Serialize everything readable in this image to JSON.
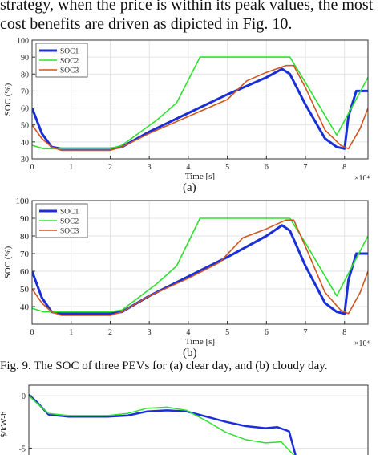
{
  "text": {
    "line1": "strategy, when the price is within its peak values, the most",
    "line2": "cost benefits are driven as dipicted in Fig. 10.",
    "caption_a": "(a)",
    "caption_b": "(b)",
    "fig9_caption": "Fig. 9. The SOC of three PEVs for (a) clear day, and (b) cloudy day."
  },
  "chart_data": [
    {
      "type": "line",
      "panel": "(a)",
      "xlabel": "Time [s]",
      "ylabel": "SOC (%)",
      "x_multiplier": "×10⁴",
      "xlim": [
        0,
        8.6
      ],
      "ylim": [
        30,
        100
      ],
      "xticks": [
        0,
        1,
        2,
        3,
        4,
        5,
        6,
        7,
        8
      ],
      "yticks": [
        30,
        40,
        50,
        60,
        70,
        80,
        90,
        100
      ],
      "grid": true,
      "legend_position": "top-left",
      "series": [
        {
          "name": "SOC1",
          "color": "#1a2fd6",
          "width": 3,
          "x": [
            0,
            0.25,
            0.5,
            0.75,
            1.0,
            1.5,
            2.0,
            2.3,
            3.0,
            4.0,
            5.0,
            6.0,
            6.4,
            6.6,
            7.0,
            7.5,
            7.8,
            8.0,
            8.1,
            8.3,
            8.6
          ],
          "y": [
            60,
            45,
            37,
            36,
            36,
            36,
            36,
            37,
            46,
            57,
            68,
            78,
            83,
            80,
            62,
            42,
            37,
            36,
            55,
            70,
            70
          ]
        },
        {
          "name": "SOC2",
          "color": "#2ee02e",
          "width": 1.6,
          "x": [
            0,
            0.3,
            0.6,
            1.0,
            1.5,
            2.0,
            2.3,
            3.2,
            3.7,
            4.3,
            5.0,
            6.0,
            6.6,
            7.0,
            7.8,
            8.6
          ],
          "y": [
            38,
            36,
            36,
            36,
            36,
            36,
            38,
            53,
            63,
            90,
            90,
            90,
            90,
            75,
            44,
            78
          ]
        },
        {
          "name": "SOC3",
          "color": "#d2541e",
          "width": 1.6,
          "x": [
            0,
            0.25,
            0.5,
            0.75,
            1.0,
            1.5,
            2.0,
            2.3,
            3.0,
            4.0,
            5.0,
            5.5,
            6.0,
            6.5,
            6.7,
            7.0,
            7.5,
            7.9,
            8.1,
            8.4,
            8.6
          ],
          "y": [
            50,
            42,
            37,
            35,
            35,
            35,
            35,
            37,
            45,
            55,
            65,
            76,
            81,
            85,
            85,
            72,
            47,
            38,
            36,
            48,
            60
          ]
        }
      ]
    },
    {
      "type": "line",
      "panel": "(b)",
      "xlabel": "Time [s]",
      "ylabel": "SOC (%)",
      "x_multiplier": "×10⁴",
      "xlim": [
        0,
        8.6
      ],
      "ylim": [
        30,
        100
      ],
      "xticks": [
        0,
        1,
        2,
        3,
        4,
        5,
        6,
        7,
        8
      ],
      "yticks": [
        40,
        50,
        60,
        70,
        80,
        90,
        100
      ],
      "grid": true,
      "legend_position": "top-left",
      "series": [
        {
          "name": "SOC1",
          "color": "#1a2fd6",
          "width": 3,
          "x": [
            0,
            0.25,
            0.5,
            0.75,
            1.0,
            1.5,
            2.0,
            2.3,
            3.0,
            4.0,
            5.0,
            6.0,
            6.4,
            6.6,
            7.0,
            7.5,
            7.8,
            8.0,
            8.1,
            8.3,
            8.6
          ],
          "y": [
            60,
            45,
            37,
            36,
            36,
            36,
            36,
            37,
            46,
            57,
            68,
            80,
            86,
            83,
            63,
            42,
            37,
            36,
            55,
            70,
            70
          ]
        },
        {
          "name": "SOC2",
          "color": "#2ee02e",
          "width": 1.6,
          "x": [
            0,
            0.3,
            0.6,
            1.0,
            1.5,
            2.0,
            2.3,
            3.2,
            3.7,
            4.3,
            5.0,
            6.0,
            6.6,
            7.0,
            7.8,
            8.6
          ],
          "y": [
            39,
            37,
            37,
            37,
            37,
            37,
            38,
            53,
            63,
            90,
            90,
            90,
            90,
            76,
            46,
            80
          ]
        },
        {
          "name": "SOC3",
          "color": "#d2541e",
          "width": 1.6,
          "x": [
            0,
            0.25,
            0.5,
            0.75,
            1.0,
            1.5,
            2.0,
            2.3,
            3.0,
            4.0,
            4.8,
            5.4,
            6.0,
            6.5,
            6.7,
            7.0,
            7.5,
            7.9,
            8.1,
            8.4,
            8.6
          ],
          "y": [
            50,
            42,
            37,
            35,
            35,
            35,
            35,
            37,
            46,
            56,
            65,
            79,
            84,
            89,
            89,
            74,
            48,
            38,
            36,
            48,
            60
          ]
        }
      ]
    },
    {
      "type": "line",
      "panel": "fig10-partial",
      "ylabel": "$/kW-h",
      "xlim": [
        0,
        8.6
      ],
      "ylim": [
        -6.5,
        1
      ],
      "yticks": [
        0,
        -5
      ],
      "grid": true,
      "series": [
        {
          "color": "#1a2fd6",
          "width": 2.5,
          "x": [
            0,
            0.2,
            0.5,
            1.0,
            1.5,
            2.0,
            2.5,
            3.0,
            3.5,
            4.0,
            4.5,
            5.0,
            5.5,
            6.0,
            6.3,
            6.6,
            6.8
          ],
          "y": [
            0.1,
            -0.6,
            -1.8,
            -2.0,
            -2.0,
            -2.0,
            -1.9,
            -1.5,
            -1.4,
            -1.5,
            -2.0,
            -2.5,
            -2.9,
            -3.1,
            -3.0,
            -3.4,
            -6.2
          ]
        },
        {
          "color": "#2ee02e",
          "width": 1.5,
          "x": [
            0,
            0.2,
            0.5,
            1.0,
            1.5,
            2.0,
            2.5,
            3.0,
            3.5,
            4.0,
            4.5,
            5.0,
            5.5,
            6.0,
            6.4,
            6.8
          ],
          "y": [
            0.0,
            -0.7,
            -1.7,
            -1.9,
            -1.9,
            -1.9,
            -1.7,
            -1.2,
            -1.1,
            -1.4,
            -2.4,
            -3.5,
            -4.2,
            -4.5,
            -4.4,
            -6.0
          ]
        }
      ]
    }
  ]
}
